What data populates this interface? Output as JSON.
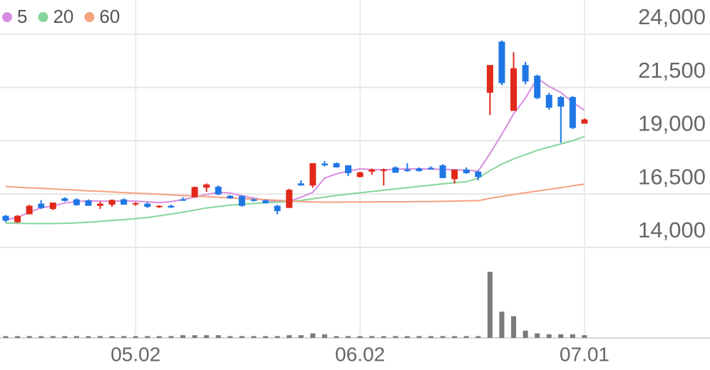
{
  "chart_data": {
    "type": "candlestick",
    "categories": [
      null,
      null,
      null,
      null,
      null,
      null,
      null,
      null,
      null,
      null,
      null,
      "05.02",
      null,
      null,
      null,
      null,
      null,
      null,
      null,
      null,
      null,
      null,
      null,
      null,
      null,
      null,
      null,
      null,
      null,
      null,
      "06.02",
      null,
      null,
      null,
      null,
      null,
      null,
      null,
      null,
      null,
      null,
      null,
      null,
      null,
      null,
      null,
      null,
      null,
      null,
      "07.01"
    ],
    "open": [
      15480,
      15180,
      15550,
      16050,
      15800,
      16300,
      16250,
      16200,
      15950,
      16000,
      16250,
      16020,
      16050,
      15920,
      15950,
      16250,
      16350,
      16800,
      16850,
      16420,
      16400,
      16250,
      16200,
      15950,
      15850,
      17000,
      16900,
      17930,
      17950,
      17850,
      17300,
      17550,
      17600,
      17750,
      17650,
      17700,
      17730,
      17850,
      17200,
      17650,
      17550,
      21250,
      23650,
      20400,
      22550,
      22050,
      21150,
      21050,
      21050,
      19800
    ],
    "high": [
      15520,
      15520,
      16000,
      16220,
      16100,
      16350,
      16300,
      16250,
      16150,
      16250,
      16300,
      16120,
      16100,
      15980,
      16000,
      16350,
      16850,
      17000,
      16900,
      16450,
      16450,
      16300,
      16250,
      16000,
      16750,
      17150,
      17950,
      18050,
      17980,
      17850,
      17550,
      17700,
      17700,
      17800,
      17950,
      17750,
      17800,
      17900,
      17650,
      17750,
      17600,
      22550,
      23700,
      23150,
      22700,
      22100,
      21250,
      21100,
      21100,
      20050
    ],
    "low": [
      15180,
      15150,
      15550,
      15800,
      15750,
      16150,
      15950,
      15950,
      15800,
      15900,
      16000,
      15950,
      15850,
      15850,
      15850,
      16200,
      16350,
      16600,
      16450,
      16280,
      15900,
      16150,
      16050,
      15550,
      15850,
      16900,
      16800,
      17800,
      17750,
      17350,
      17280,
      17400,
      16900,
      17500,
      17550,
      17550,
      17650,
      17250,
      17000,
      17450,
      17150,
      20200,
      21600,
      20400,
      21650,
      20950,
      20450,
      18900,
      19550,
      19800
    ],
    "close": [
      15250,
      15480,
      15950,
      15850,
      16100,
      16180,
      15980,
      15950,
      16050,
      16220,
      16000,
      16080,
      15900,
      15950,
      15870,
      16230,
      16830,
      16950,
      16480,
      16300,
      15950,
      16180,
      16080,
      15700,
      16700,
      16900,
      17950,
      17850,
      17750,
      17480,
      17520,
      17650,
      17650,
      17500,
      17580,
      17580,
      17680,
      17250,
      17650,
      17480,
      17300,
      22550,
      21700,
      22400,
      21780,
      21000,
      20550,
      20600,
      19600,
      20000
    ],
    "up_color": "#e0291a",
    "down_color": "#1f77e5",
    "moving_averages": [
      {
        "name": "5",
        "color": "#d68de0",
        "values": [
          15300,
          15400,
          15650,
          15850,
          15950,
          16080,
          16150,
          16180,
          16170,
          16170,
          16180,
          16170,
          16130,
          16100,
          16150,
          16240,
          16350,
          16480,
          16580,
          16550,
          16420,
          16310,
          16220,
          16140,
          16160,
          16350,
          16580,
          17250,
          17450,
          17580,
          17680,
          17650,
          17640,
          17660,
          17680,
          17680,
          17670,
          17660,
          17640,
          17620,
          17580,
          18400,
          19300,
          20260,
          21000,
          21930,
          21550,
          21260,
          20800,
          20430
        ]
      },
      {
        "name": "20",
        "color": "#86d59a",
        "values": [
          15140,
          15130,
          15120,
          15120,
          15120,
          15130,
          15150,
          15180,
          15220,
          15260,
          15300,
          15350,
          15400,
          15480,
          15560,
          15650,
          15750,
          15850,
          15920,
          15980,
          16020,
          16060,
          16090,
          16120,
          16140,
          16200,
          16280,
          16360,
          16430,
          16500,
          16560,
          16620,
          16680,
          16740,
          16800,
          16860,
          16920,
          16980,
          17030,
          17080,
          17250,
          17600,
          17900,
          18150,
          18350,
          18550,
          18700,
          18850,
          19000,
          19200
        ]
      },
      {
        "name": "60",
        "color": "#f4a27f",
        "values": [
          16850,
          16820,
          16790,
          16770,
          16740,
          16710,
          16680,
          16650,
          16630,
          16600,
          16570,
          16540,
          16520,
          16490,
          16460,
          16430,
          16400,
          16380,
          16350,
          16320,
          16290,
          16260,
          16240,
          16210,
          16180,
          16150,
          16130,
          16120,
          16120,
          16130,
          16130,
          16130,
          16140,
          16140,
          16140,
          16150,
          16150,
          16160,
          16170,
          16180,
          16190,
          16300,
          16390,
          16480,
          16560,
          16640,
          16720,
          16800,
          16890,
          16970
        ]
      }
    ],
    "volume": {
      "color": "#7a7a7a",
      "ylim": [
        0,
        100
      ],
      "values": [
        2,
        2,
        2,
        2,
        2,
        2,
        2,
        2,
        2,
        2,
        2,
        2,
        2,
        2,
        2,
        3,
        3,
        3,
        3,
        2,
        2,
        2,
        2,
        2,
        3,
        3,
        5,
        4,
        2,
        2,
        2,
        2,
        2,
        2,
        2,
        2,
        2,
        2,
        2,
        2,
        2,
        73,
        29,
        24,
        8,
        5,
        4,
        4,
        4,
        3
      ]
    },
    "ylim": [
      14000,
      25600
    ],
    "yticks": [
      {
        "value": 14000,
        "label": "14,000"
      },
      {
        "value": 16500,
        "label": "16,500"
      },
      {
        "value": 19000,
        "label": "19,000"
      },
      {
        "value": 21500,
        "label": "21,500"
      },
      {
        "value": 24000,
        "label": "24,000"
      }
    ],
    "grid": true
  }
}
